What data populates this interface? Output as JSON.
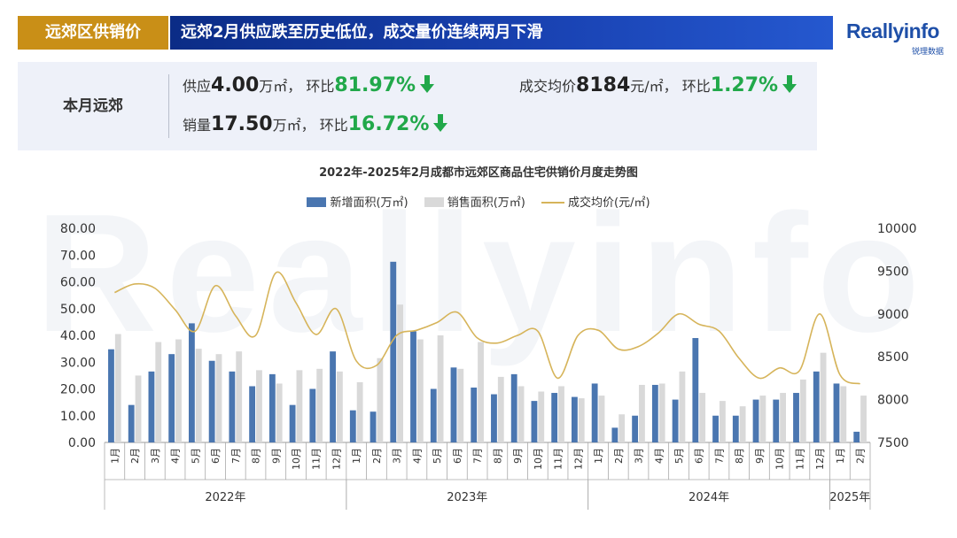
{
  "banner": {
    "tag": "远郊区供销价",
    "headline": "远郊2月供应跌至历史低位，成交量价连续两月下滑"
  },
  "logo": {
    "main": "Reallyinfo",
    "sub": "锐理数据",
    "watermark": "Reallyinfo"
  },
  "summary": {
    "label": "本月远郊",
    "supply": {
      "prefix": "供应",
      "value": "4.00",
      "unit": "万㎡，",
      "mom_label": "环比",
      "mom": "81.97%",
      "direction": "down"
    },
    "sales": {
      "prefix": "销量",
      "value": "17.50",
      "unit": "万㎡，",
      "mom_label": "环比",
      "mom": "16.72%",
      "direction": "down"
    },
    "price": {
      "prefix": "成交均价",
      "value": "8184",
      "unit": "元/㎡，",
      "mom_label": "环比",
      "mom": "1.27%",
      "direction": "down"
    }
  },
  "colors": {
    "supply_bar": "#4a76b0",
    "sales_bar": "#d9d9d9",
    "price_line": "#d6b45a",
    "up_down_green": "#21a84a"
  },
  "chart_data": {
    "type": "bar",
    "title": "2022年-2025年2月成都市远郊区商品住宅供销价月度走势图",
    "x_labels": [
      "1月",
      "2月",
      "3月",
      "4月",
      "5月",
      "6月",
      "7月",
      "8月",
      "9月",
      "10月",
      "11月",
      "12月",
      "1月",
      "2月",
      "3月",
      "4月",
      "5月",
      "6月",
      "7月",
      "8月",
      "9月",
      "10月",
      "11月",
      "12月",
      "1月",
      "2月",
      "3月",
      "4月",
      "5月",
      "6月",
      "7月",
      "8月",
      "9月",
      "10月",
      "11月",
      "12月",
      "1月",
      "2月"
    ],
    "years": [
      {
        "label": "2022年",
        "start": 0,
        "end": 11
      },
      {
        "label": "2023年",
        "start": 12,
        "end": 23
      },
      {
        "label": "2024年",
        "start": 24,
        "end": 35
      },
      {
        "label": "2025年",
        "start": 36,
        "end": 37
      }
    ],
    "y_left": {
      "min": 0,
      "max": 80,
      "ticks": [
        "0.00",
        "10.00",
        "20.00",
        "30.00",
        "40.00",
        "50.00",
        "60.00",
        "70.00",
        "80.00"
      ]
    },
    "y_right": {
      "min": 7500,
      "max": 10000,
      "ticks": [
        "7500",
        "8000",
        "8500",
        "9000",
        "9500",
        "10000"
      ]
    },
    "legend_position": "top-center",
    "series": [
      {
        "name": "新增面积(万㎡)",
        "type": "bar",
        "axis": "left",
        "values": [
          34.8,
          14.0,
          26.5,
          33.0,
          44.5,
          30.5,
          26.5,
          21.0,
          25.5,
          14.0,
          20.0,
          34.0,
          12.0,
          11.5,
          67.5,
          41.5,
          20.0,
          28.0,
          20.5,
          18.0,
          25.5,
          15.5,
          18.5,
          17.0,
          22.0,
          5.5,
          10.0,
          21.5,
          16.0,
          39.0,
          10.0,
          10.0,
          16.0,
          16.0,
          18.5,
          26.5,
          22.0,
          4.0
        ]
      },
      {
        "name": "销售面积(万㎡)",
        "type": "bar",
        "axis": "left",
        "values": [
          40.5,
          25.0,
          37.5,
          38.5,
          35.0,
          33.0,
          34.0,
          27.0,
          22.0,
          27.0,
          27.5,
          26.5,
          22.5,
          31.5,
          51.5,
          38.5,
          40.0,
          27.5,
          37.5,
          24.5,
          21.0,
          19.0,
          21.0,
          16.5,
          17.5,
          10.5,
          21.5,
          22.0,
          26.5,
          18.5,
          15.5,
          13.5,
          17.5,
          18.5,
          23.5,
          33.5,
          21.0,
          17.5
        ]
      },
      {
        "name": "成交均价(元/㎡)",
        "type": "line",
        "axis": "right",
        "values": [
          9250,
          9350,
          9300,
          9050,
          8800,
          9330,
          8980,
          8750,
          9480,
          9130,
          8760,
          9060,
          8450,
          8400,
          8750,
          8810,
          8900,
          9020,
          8720,
          8660,
          8750,
          8800,
          8250,
          8750,
          8810,
          8590,
          8620,
          8780,
          9000,
          8880,
          8800,
          8480,
          8250,
          8370,
          8340,
          9000,
          8290,
          8184
        ]
      }
    ]
  }
}
